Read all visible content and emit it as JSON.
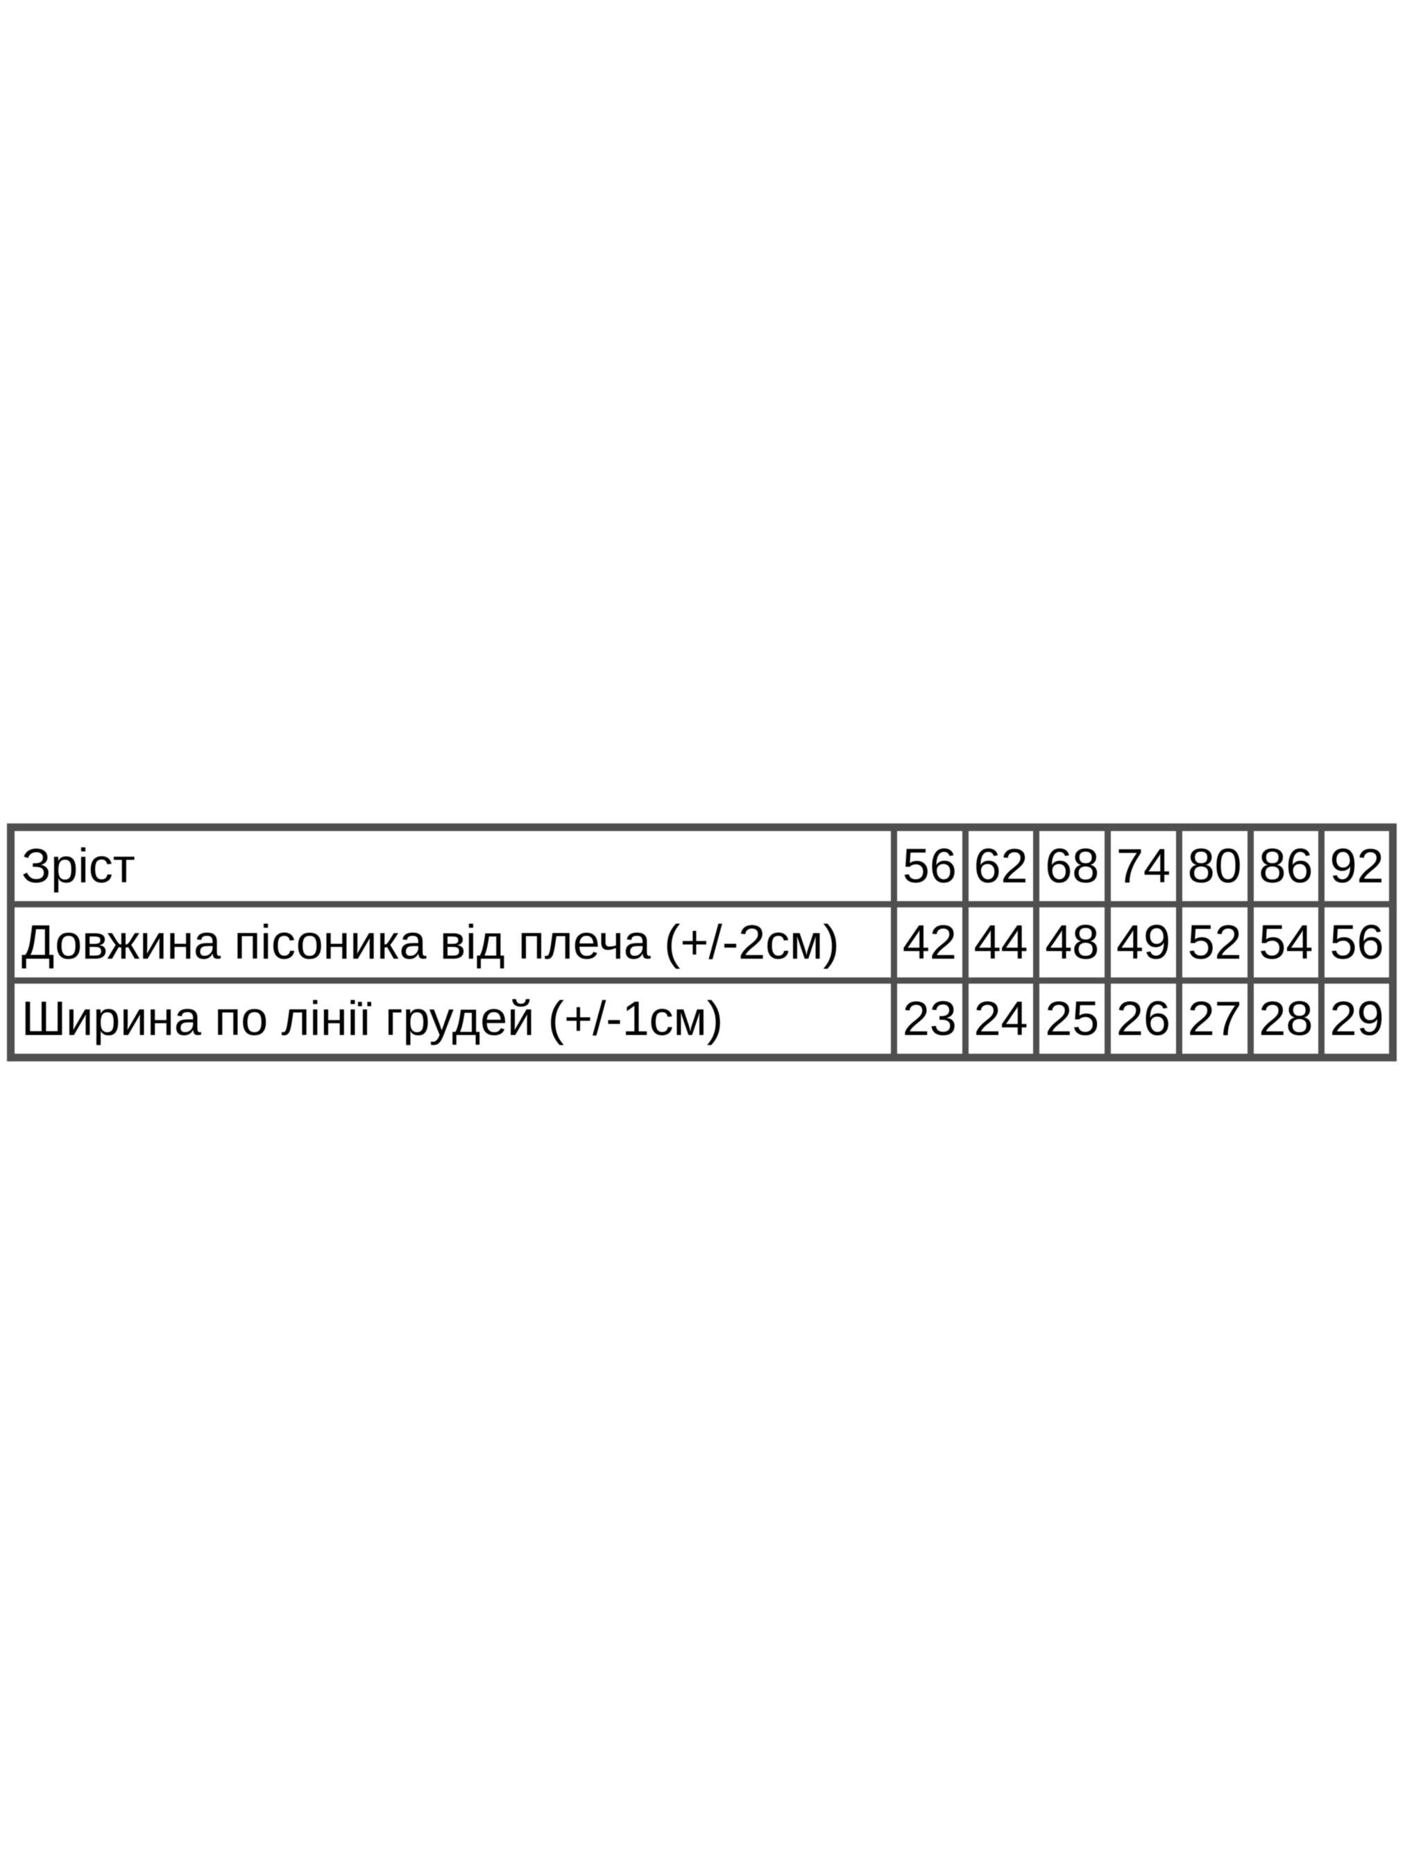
{
  "colors": {
    "page_background": "#ffffff",
    "cell_background": "#ffffff",
    "table_border": "#4f4f4f",
    "text": "#000000"
  },
  "chart_data": {
    "type": "table",
    "description": "Garment size chart (Ukrainian) mapping child height to romper measurements",
    "rows": [
      {
        "label": "Зріст",
        "values": [
          "56",
          "62",
          "68",
          "74",
          "80",
          "86",
          "92"
        ]
      },
      {
        "label": "Довжина пісоника від плеча (+/-2см)",
        "values": [
          "42",
          "44",
          "48",
          "49",
          "52",
          "54",
          "56"
        ]
      },
      {
        "label": "Ширина по лінії грудей (+/-1см)",
        "values": [
          "23",
          "24",
          "25",
          "26",
          "27",
          "28",
          "29"
        ]
      }
    ]
  }
}
